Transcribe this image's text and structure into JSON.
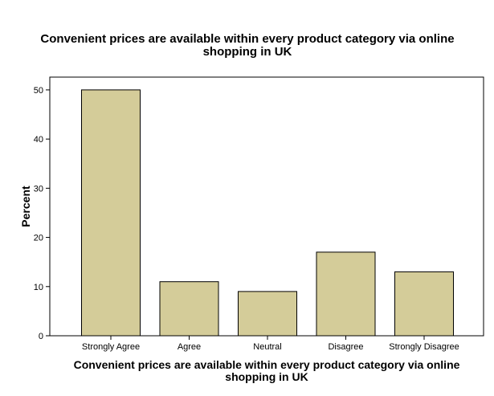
{
  "chart_data": {
    "type": "bar",
    "title_lines": [
      "Convenient prices are available within every product category via online",
      "shopping in UK"
    ],
    "xlabel_lines": [
      "Convenient prices are available within every product category via online",
      "shopping in UK"
    ],
    "ylabel": "Percent",
    "categories": [
      "Strongly Agree",
      "Agree",
      "Neutral",
      "Disagree",
      "Strongly Disagree"
    ],
    "values": [
      50,
      11,
      9,
      17,
      13
    ],
    "ylim": [
      0,
      52.6
    ],
    "yticks": [
      "0",
      "10",
      "20",
      "30",
      "40",
      "50"
    ],
    "grid": false,
    "bar_color": "#d4cc99",
    "bar_edge_color": "#000000",
    "plot_background": "#ffffff"
  }
}
